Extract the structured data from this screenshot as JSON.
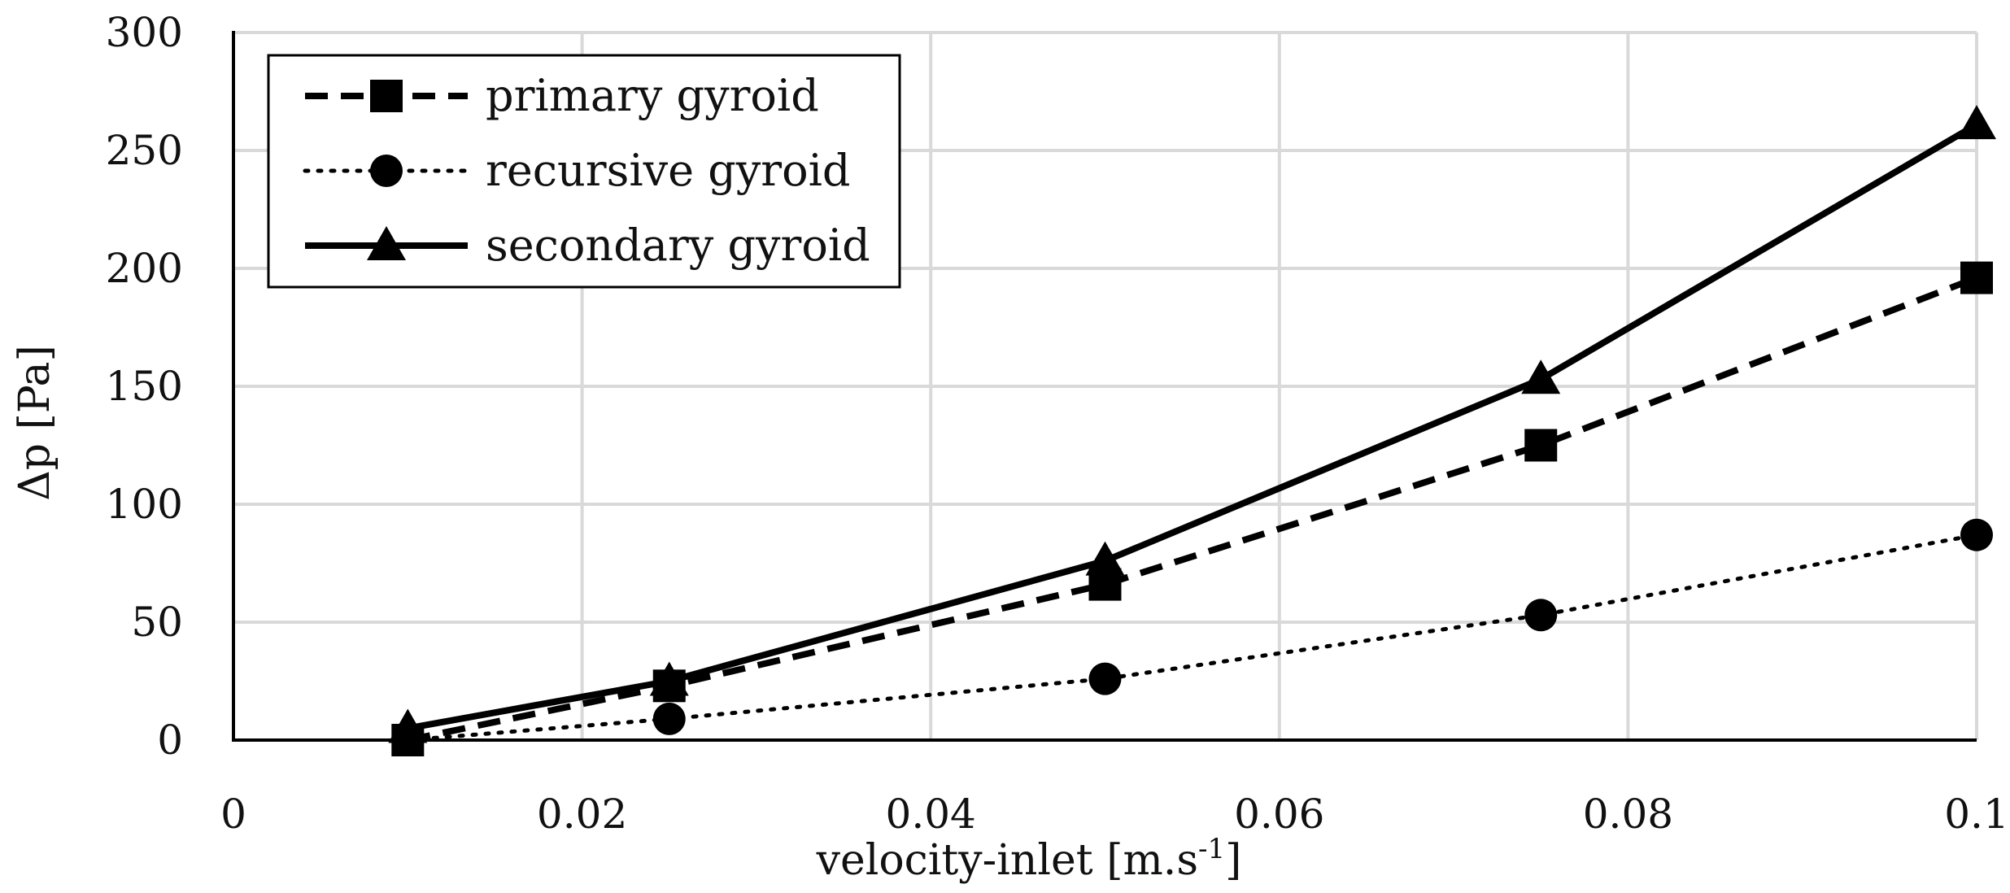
{
  "chart_data": {
    "type": "line",
    "title": "",
    "xlabel": "velocity-inlet [m.s",
    "xlabel_sup": "-1",
    "xlabel_end": "]",
    "ylabel": "Δp [Pa]",
    "xlim": [
      0,
      0.1
    ],
    "ylim": [
      0,
      300
    ],
    "xticks": [
      0,
      0.02,
      0.04,
      0.06,
      0.08,
      0.1
    ],
    "xtick_labels": [
      "0",
      "0.02",
      "0.04",
      "0.06",
      "0.08",
      "0.1"
    ],
    "yticks": [
      0,
      50,
      100,
      150,
      200,
      250,
      300
    ],
    "ytick_labels": [
      "0",
      "50",
      "100",
      "150",
      "200",
      "250",
      "300"
    ],
    "grid": true,
    "legend_position": "top-left",
    "x": [
      0.01,
      0.025,
      0.05,
      0.075,
      0.1
    ],
    "series": [
      {
        "name": "primary gyroid",
        "marker": "square",
        "line": "dashed",
        "values": [
          0,
          23,
          66,
          125,
          196
        ]
      },
      {
        "name": "recursive gyroid",
        "marker": "circle",
        "line": "dotted",
        "values": [
          0,
          9,
          26,
          53,
          87
        ]
      },
      {
        "name": "secondary gyroid",
        "marker": "triangle",
        "line": "solid",
        "values": [
          5,
          25,
          76,
          153,
          261
        ]
      }
    ],
    "colors": {
      "line": "#000000",
      "grid": "#d9d9d9",
      "background": "#ffffff"
    }
  }
}
